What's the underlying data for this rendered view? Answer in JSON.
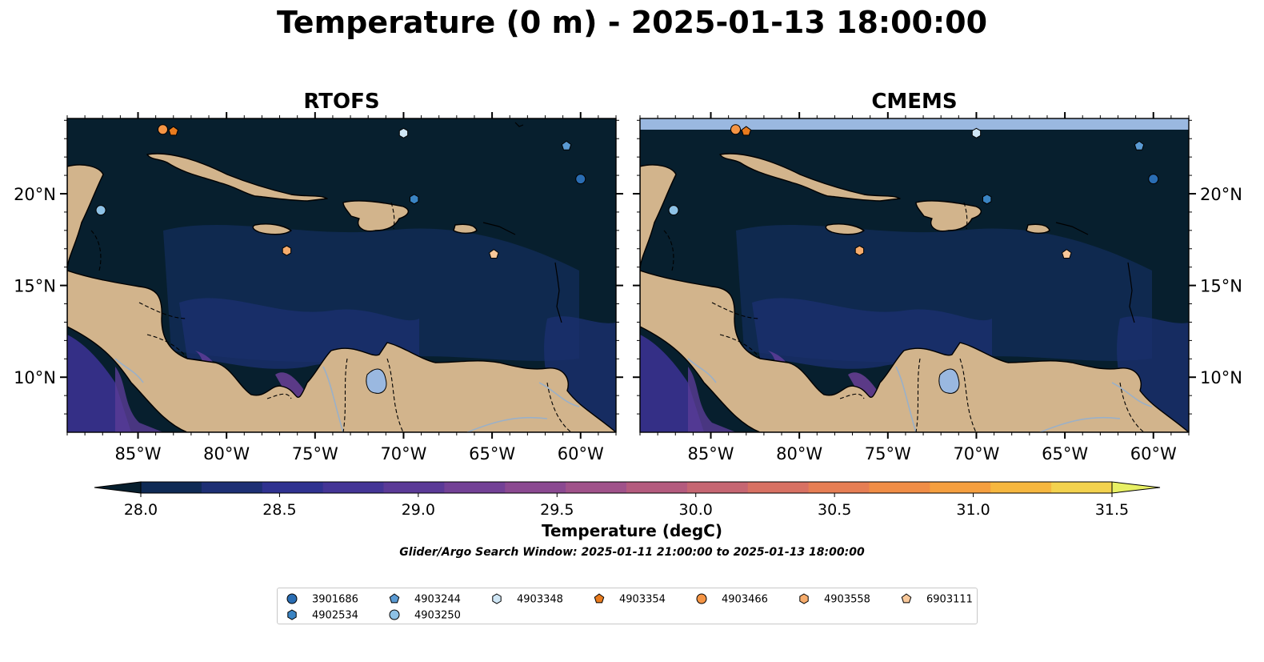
{
  "title": "Temperature (0 m) - 2025-01-13 18:00:00",
  "panels": [
    {
      "title": "RTOFS",
      "has_top_band": false
    },
    {
      "title": "CMEMS",
      "has_top_band": true
    }
  ],
  "axes": {
    "lon_ticks": [
      "85°W",
      "80°W",
      "75°W",
      "70°W",
      "65°W",
      "60°W"
    ],
    "lat_ticks": [
      "20°N",
      "15°N",
      "10°N"
    ]
  },
  "map_extent": {
    "lon": [
      -89,
      -58
    ],
    "lat": [
      7,
      24.1
    ]
  },
  "colorbar": {
    "label": "Temperature (degC)",
    "ticks": [
      "28.0",
      "28.5",
      "29.0",
      "29.5",
      "30.0",
      "30.5",
      "31.0",
      "31.5"
    ],
    "range": [
      28.0,
      31.5
    ],
    "colors": [
      "#0f2a55",
      "#1d2f74",
      "#2f3290",
      "#443596",
      "#5b3a97",
      "#734196",
      "#8b4991",
      "#a0528a",
      "#b45b7e",
      "#c66672",
      "#d87163",
      "#e67e54",
      "#f08d46",
      "#f59f3f",
      "#f6b73f",
      "#f3d24e"
    ],
    "under_color": "#071f2e",
    "over_color": "#e8f064"
  },
  "search_window": "Glider/Argo Search Window: 2025-01-11 21:00:00 to 2025-01-13 18:00:00",
  "floats": [
    {
      "id": "3901686",
      "marker": "circle",
      "color": "#2a6db3",
      "lon": -60.0,
      "lat": 20.8
    },
    {
      "id": "4902534",
      "marker": "hexagon",
      "color": "#3a84c3",
      "lon": -69.4,
      "lat": 19.7
    },
    {
      "id": "4903244",
      "marker": "pentagon",
      "color": "#5a9ad3",
      "lon": -60.8,
      "lat": 22.6
    },
    {
      "id": "4903250",
      "marker": "circle",
      "color": "#8ec2e6",
      "lon": -87.1,
      "lat": 19.1
    },
    {
      "id": "4903348",
      "marker": "hexagon",
      "color": "#cfe6f5",
      "lon": -70.0,
      "lat": 23.3
    },
    {
      "id": "4903354",
      "marker": "pentagon",
      "color": "#e87b1e",
      "lon": -83.0,
      "lat": 23.4
    },
    {
      "id": "4903466",
      "marker": "circle",
      "color": "#f59545",
      "lon": -83.6,
      "lat": 23.5
    },
    {
      "id": "4903558",
      "marker": "hexagon",
      "color": "#f6ac6c",
      "lon": -76.6,
      "lat": 16.9
    },
    {
      "id": "6903111",
      "marker": "pentagon",
      "color": "#f8c89a",
      "lon": -64.9,
      "lat": 16.7
    }
  ]
}
